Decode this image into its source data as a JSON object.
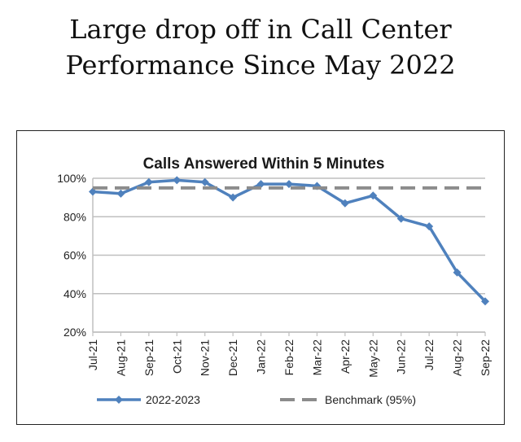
{
  "headline": {
    "line1": "Large drop off in Call Center",
    "line2": "Performance Since May 2022"
  },
  "chart_data": {
    "type": "line",
    "title": "Calls Answered Within 5 Minutes",
    "xlabel": "",
    "ylabel": "",
    "categories": [
      "Jul-21",
      "Aug-21",
      "Sep-21",
      "Oct-21",
      "Nov-21",
      "Dec-21",
      "Jan-22",
      "Feb-22",
      "Mar-22",
      "Apr-22",
      "May-22",
      "Jun-22",
      "Jul-22",
      "Aug-22",
      "Sep-22"
    ],
    "ylim": [
      20,
      100
    ],
    "yticks": [
      20,
      40,
      60,
      80,
      100
    ],
    "ytick_format": "%",
    "grid": true,
    "legend_position": "bottom",
    "series": [
      {
        "name": "2022-2023",
        "color": "#4f81bd",
        "style": "solid-with-diamond-markers",
        "values": [
          93,
          92,
          98,
          99,
          98,
          90,
          97,
          97,
          96,
          87,
          91,
          79,
          75,
          51,
          36
        ]
      },
      {
        "name": "Benchmark (95%)",
        "color": "#8c8c8c",
        "style": "dashed",
        "values": [
          95,
          95,
          95,
          95,
          95,
          95,
          95,
          95,
          95,
          95,
          95,
          95,
          95,
          95,
          95
        ]
      }
    ]
  }
}
